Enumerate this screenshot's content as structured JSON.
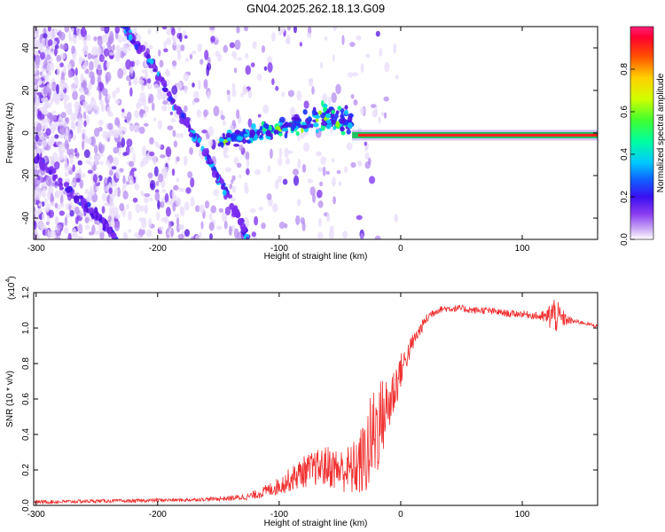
{
  "title": "GN04.2025.262.18.13.G09",
  "colors": {
    "snr_line": "#f03030",
    "trace_core": "#ff1e1e",
    "trace_band": "#20c060",
    "colormap": [
      "#e8dcfb",
      "#b58cf2",
      "#7a2cf0",
      "#5010e0",
      "#2030ff",
      "#00c8ff",
      "#00ff80",
      "#a0ff00",
      "#ffff00",
      "#ff8000",
      "#ff0000",
      "#ff1e78"
    ]
  },
  "chart_data": [
    {
      "type": "heatmap",
      "title": "GN04.2025.262.18.13.G09",
      "xlabel": "Height of straight line (km)",
      "ylabel": "Frequency (Hz)",
      "xlim": [
        -302,
        162
      ],
      "ylim": [
        -50,
        50
      ],
      "xticks": [
        -300,
        -200,
        -100,
        0,
        100
      ],
      "yticks": [
        -40,
        -20,
        0,
        20,
        40
      ],
      "colorbar": {
        "label": "Normalized spectral amplitude",
        "range": [
          0,
          1
        ],
        "ticks": [
          "0.0",
          "0.2",
          "0.4",
          "0.6",
          "0.8"
        ],
        "tick_values": [
          0,
          0.2,
          0.4,
          0.6,
          0.8
        ]
      },
      "features": [
        {
          "name": "descending diagonal trace (upper)",
          "x": [
            -230,
            -205,
            -180,
            -160,
            -140,
            -125
          ],
          "y": [
            52,
            32,
            8,
            -10,
            -32,
            -50
          ]
        },
        {
          "name": "descending diagonal trace (lower)",
          "x": [
            -300,
            -270,
            -245,
            -232
          ],
          "y": [
            -12,
            -28,
            -42,
            -50
          ]
        },
        {
          "name": "mid-band noisy cluster",
          "x": [
            -150,
            -100,
            -60,
            -40
          ],
          "y": [
            -4,
            2,
            8,
            4
          ]
        },
        {
          "name": "steady carrier",
          "x": [
            -40,
            0,
            50,
            100,
            162
          ],
          "y": [
            0,
            -1,
            -1,
            -1,
            -1
          ]
        }
      ]
    },
    {
      "type": "line",
      "xlabel": "Height of straight line (km)",
      "ylabel": "SNR (10 * v/v)",
      "yscale_label": "(x10",
      "yscale_exp": "4",
      "xlim": [
        -302,
        162
      ],
      "ylim": [
        0,
        1.2
      ],
      "xticks": [
        -300,
        -200,
        -100,
        0,
        100
      ],
      "yticks": [
        "0.0",
        "0.2",
        "0.4",
        "0.6",
        "0.8",
        "1.0",
        "1.2"
      ],
      "ytick_values": [
        0,
        0.2,
        0.4,
        0.6,
        0.8,
        1.0,
        1.2
      ],
      "series": [
        {
          "name": "SNR",
          "x": [
            -302,
            -280,
            -250,
            -220,
            -200,
            -180,
            -160,
            -140,
            -125,
            -115,
            -100,
            -90,
            -80,
            -70,
            -60,
            -50,
            -40,
            -30,
            -25,
            -20,
            -15,
            -10,
            -5,
            0,
            5,
            10,
            15,
            20,
            25,
            30,
            35,
            40,
            50,
            60,
            70,
            80,
            90,
            100,
            110,
            120,
            125,
            130,
            135,
            140,
            150,
            162
          ],
          "y": [
            0.02,
            0.02,
            0.025,
            0.025,
            0.03,
            0.03,
            0.035,
            0.04,
            0.05,
            0.07,
            0.11,
            0.15,
            0.19,
            0.21,
            0.22,
            0.2,
            0.2,
            0.26,
            0.34,
            0.44,
            0.5,
            0.56,
            0.66,
            0.76,
            0.84,
            0.92,
            0.98,
            1.04,
            1.08,
            1.1,
            1.11,
            1.11,
            1.11,
            1.1,
            1.1,
            1.09,
            1.08,
            1.08,
            1.07,
            1.06,
            1.08,
            1.06,
            1.05,
            1.04,
            1.03,
            1.01
          ],
          "noise_amp": [
            0.01,
            0.01,
            0.01,
            0.01,
            0.01,
            0.01,
            0.01,
            0.015,
            0.02,
            0.03,
            0.05,
            0.07,
            0.09,
            0.1,
            0.12,
            0.12,
            0.15,
            0.22,
            0.28,
            0.3,
            0.22,
            0.18,
            0.15,
            0.1,
            0.07,
            0.05,
            0.04,
            0.03,
            0.03,
            0.02,
            0.02,
            0.02,
            0.02,
            0.02,
            0.02,
            0.02,
            0.02,
            0.02,
            0.02,
            0.04,
            0.12,
            0.08,
            0.04,
            0.02,
            0.01,
            0.01
          ]
        }
      ]
    }
  ]
}
